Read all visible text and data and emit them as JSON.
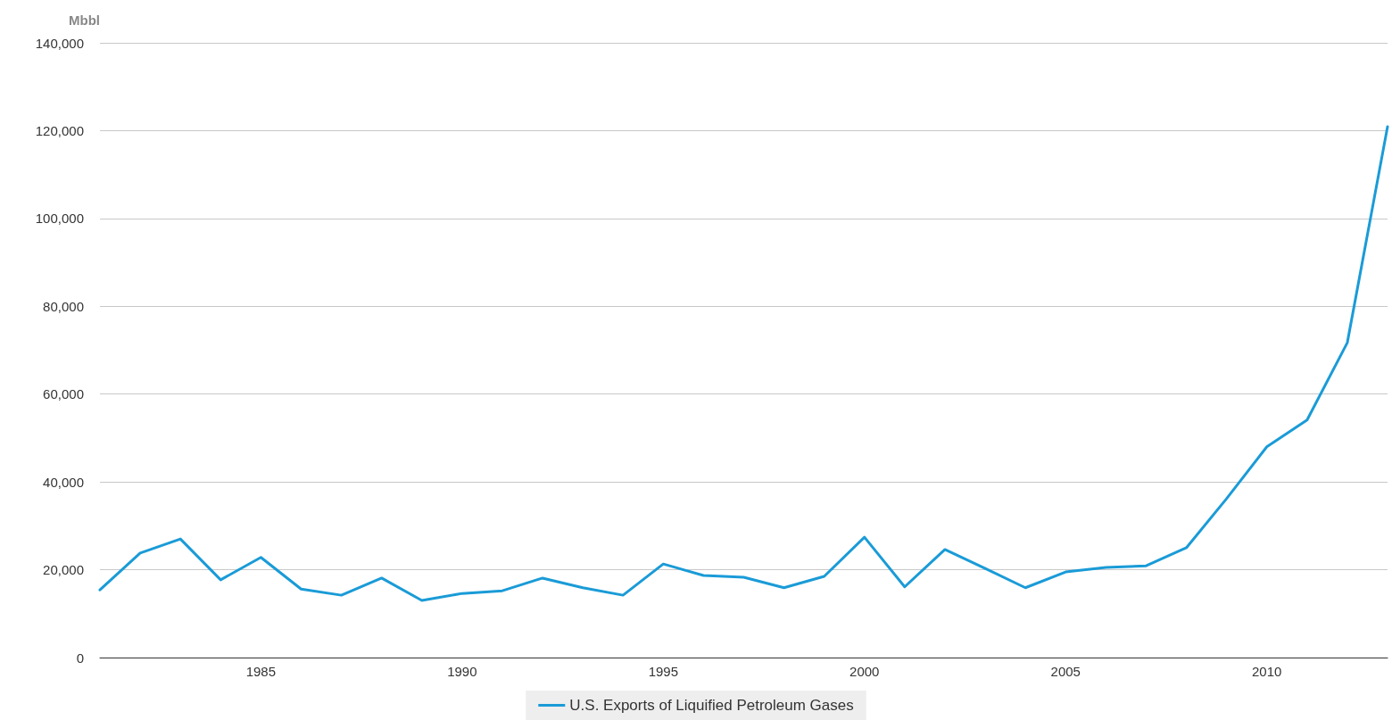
{
  "chart_data": {
    "type": "line",
    "ylabel": "Mbbl",
    "x": [
      1981,
      1982,
      1983,
      1984,
      1985,
      1986,
      1987,
      1988,
      1989,
      1990,
      1991,
      1992,
      1993,
      1994,
      1995,
      1996,
      1997,
      1998,
      1999,
      2000,
      2001,
      2002,
      2003,
      2004,
      2005,
      2006,
      2007,
      2008,
      2009,
      2010,
      2011,
      2012,
      2013
    ],
    "series": [
      {
        "name": "U.S. Exports of Liquified Petroleum Gases",
        "color": "#1a9bd7",
        "values": [
          15400,
          23800,
          27000,
          17700,
          22800,
          15600,
          14200,
          18100,
          13000,
          14600,
          15200,
          18100,
          15900,
          14200,
          21300,
          18700,
          18300,
          15900,
          18500,
          27400,
          16100,
          24600,
          20300,
          15900,
          19500,
          20500,
          20900,
          25000,
          36200,
          48000,
          54100,
          71700,
          120900
        ]
      }
    ],
    "xlim": [
      1981,
      2013
    ],
    "xticks": [
      1985,
      1990,
      1995,
      2000,
      2005,
      2010
    ],
    "ylim": [
      0,
      140000
    ],
    "yticks": [
      0,
      {
        "value": 20000,
        "label": "20,000"
      },
      {
        "value": 40000,
        "label": "40,000"
      },
      {
        "value": 60000,
        "label": "60,000"
      },
      {
        "value": 80000,
        "label": "80,000"
      },
      {
        "value": 100000,
        "label": "100,000"
      },
      {
        "value": 120000,
        "label": "120,000"
      },
      {
        "value": 140000,
        "label": "140,000"
      }
    ],
    "grid": "y",
    "legend": "bottom",
    "marker": "none",
    "line_style": "solid"
  }
}
